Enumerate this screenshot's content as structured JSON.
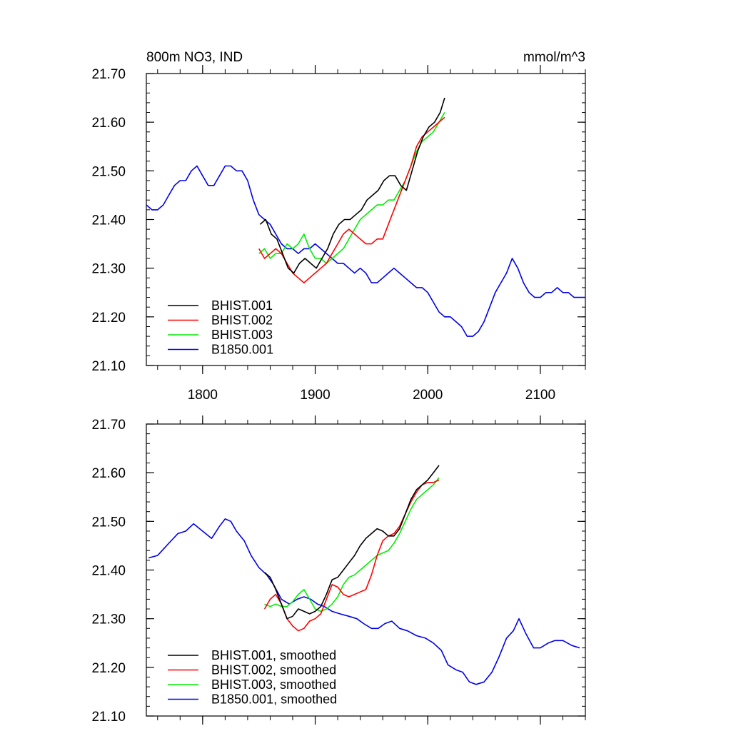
{
  "chart_data": [
    {
      "type": "line",
      "title": "800m NO3, IND",
      "units": "mmol/m^3",
      "xlim": [
        1750,
        2140
      ],
      "ylim": [
        21.1,
        21.7
      ],
      "xticks": [
        1800,
        1900,
        2000,
        2100
      ],
      "xtick_labels": [
        "1800",
        "1900",
        "2000",
        "2100"
      ],
      "yticks": [
        21.1,
        21.2,
        21.3,
        21.4,
        21.5,
        21.6,
        21.7
      ],
      "ytick_labels": [
        "21.10",
        "21.20",
        "21.30",
        "21.40",
        "21.50",
        "21.60",
        "21.70"
      ],
      "grid": false,
      "legend_position": "bottom-left",
      "series": [
        {
          "name": "BHIST.001",
          "color": "#000000",
          "x": [
            1851,
            1856,
            1861,
            1866,
            1871,
            1876,
            1881,
            1886,
            1891,
            1896,
            1901,
            1906,
            1911,
            1916,
            1921,
            1926,
            1931,
            1936,
            1941,
            1946,
            1951,
            1956,
            1961,
            1966,
            1971,
            1976,
            1981,
            1986,
            1991,
            1996,
            2001,
            2006,
            2011,
            2015
          ],
          "y": [
            21.39,
            21.4,
            21.37,
            21.36,
            21.33,
            21.3,
            21.29,
            21.31,
            21.32,
            21.31,
            21.3,
            21.32,
            21.34,
            21.37,
            21.39,
            21.4,
            21.4,
            21.41,
            21.42,
            21.44,
            21.45,
            21.46,
            21.48,
            21.49,
            21.49,
            21.47,
            21.46,
            21.5,
            21.54,
            21.57,
            21.59,
            21.6,
            21.62,
            21.65
          ]
        },
        {
          "name": "BHIST.002",
          "color": "#ff0000",
          "x": [
            1850,
            1855,
            1860,
            1865,
            1870,
            1875,
            1880,
            1885,
            1890,
            1895,
            1900,
            1905,
            1910,
            1915,
            1920,
            1925,
            1930,
            1935,
            1940,
            1945,
            1950,
            1955,
            1960,
            1965,
            1970,
            1975,
            1980,
            1985,
            1990,
            1995,
            2000,
            2005,
            2010,
            2015
          ],
          "y": [
            21.34,
            21.32,
            21.33,
            21.34,
            21.33,
            21.31,
            21.29,
            21.28,
            21.27,
            21.28,
            21.29,
            21.3,
            21.31,
            21.33,
            21.35,
            21.37,
            21.38,
            21.37,
            21.36,
            21.35,
            21.35,
            21.36,
            21.36,
            21.39,
            21.42,
            21.45,
            21.48,
            21.51,
            21.55,
            21.57,
            21.58,
            21.59,
            21.6,
            21.61
          ]
        },
        {
          "name": "BHIST.003",
          "color": "#00ee00",
          "x": [
            1850,
            1855,
            1860,
            1865,
            1870,
            1875,
            1880,
            1885,
            1890,
            1895,
            1900,
            1905,
            1910,
            1915,
            1920,
            1925,
            1930,
            1935,
            1940,
            1945,
            1950,
            1955,
            1960,
            1965,
            1970,
            1975,
            1980,
            1985,
            1990,
            1995,
            2000,
            2005,
            2010,
            2015
          ],
          "y": [
            21.33,
            21.34,
            21.32,
            21.33,
            21.33,
            21.35,
            21.34,
            21.35,
            21.37,
            21.34,
            21.32,
            21.32,
            21.31,
            21.32,
            21.33,
            21.34,
            21.36,
            21.38,
            21.4,
            21.41,
            21.42,
            21.43,
            21.43,
            21.44,
            21.44,
            21.46,
            21.48,
            21.51,
            21.54,
            21.56,
            21.57,
            21.58,
            21.6,
            21.62
          ]
        },
        {
          "name": "B1850.001",
          "color": "#0000ee",
          "x": [
            1750,
            1755,
            1760,
            1765,
            1770,
            1775,
            1780,
            1785,
            1790,
            1795,
            1800,
            1805,
            1810,
            1815,
            1820,
            1825,
            1830,
            1835,
            1840,
            1845,
            1850,
            1855,
            1860,
            1865,
            1870,
            1875,
            1880,
            1885,
            1890,
            1895,
            1900,
            1905,
            1910,
            1915,
            1920,
            1925,
            1930,
            1935,
            1940,
            1945,
            1950,
            1955,
            1960,
            1965,
            1970,
            1975,
            1980,
            1985,
            1990,
            1995,
            2000,
            2005,
            2010,
            2015,
            2020,
            2025,
            2030,
            2035,
            2040,
            2045,
            2050,
            2055,
            2060,
            2065,
            2070,
            2075,
            2080,
            2085,
            2090,
            2095,
            2100,
            2105,
            2110,
            2115,
            2120,
            2125,
            2130,
            2135,
            2140
          ],
          "y": [
            21.43,
            21.42,
            21.42,
            21.43,
            21.45,
            21.47,
            21.48,
            21.48,
            21.5,
            21.51,
            21.49,
            21.47,
            21.47,
            21.49,
            21.51,
            21.51,
            21.5,
            21.5,
            21.48,
            21.44,
            21.41,
            21.4,
            21.39,
            21.37,
            21.35,
            21.34,
            21.34,
            21.33,
            21.34,
            21.34,
            21.35,
            21.34,
            21.33,
            21.32,
            21.31,
            21.31,
            21.3,
            21.29,
            21.3,
            21.29,
            21.27,
            21.27,
            21.28,
            21.29,
            21.3,
            21.29,
            21.28,
            21.27,
            21.26,
            21.26,
            21.25,
            21.23,
            21.21,
            21.2,
            21.2,
            21.19,
            21.18,
            21.16,
            21.16,
            21.17,
            21.19,
            21.22,
            21.25,
            21.27,
            21.29,
            21.32,
            21.3,
            21.27,
            21.25,
            21.24,
            21.24,
            21.25,
            21.25,
            21.26,
            21.25,
            21.25,
            21.24,
            21.24,
            21.24
          ]
        }
      ]
    },
    {
      "type": "line",
      "xlim": [
        1750,
        2140
      ],
      "ylim": [
        21.1,
        21.7
      ],
      "xticks": [
        1800,
        1900,
        2000,
        2100
      ],
      "yticks": [
        21.1,
        21.2,
        21.3,
        21.4,
        21.5,
        21.6,
        21.7
      ],
      "ytick_labels": [
        "21.10",
        "21.20",
        "21.30",
        "21.40",
        "21.50",
        "21.60",
        "21.70"
      ],
      "grid": false,
      "legend_position": "bottom-left",
      "series": [
        {
          "name": "BHIST.001, smoothed",
          "color": "#000000",
          "x": [
            1855,
            1860,
            1865,
            1870,
            1875,
            1880,
            1885,
            1890,
            1895,
            1900,
            1905,
            1910,
            1915,
            1920,
            1925,
            1930,
            1935,
            1940,
            1945,
            1950,
            1955,
            1960,
            1965,
            1970,
            1975,
            1980,
            1985,
            1990,
            1995,
            2000,
            2005,
            2010
          ],
          "y": [
            21.395,
            21.385,
            21.36,
            21.33,
            21.3,
            21.305,
            21.32,
            21.315,
            21.31,
            21.315,
            21.325,
            21.35,
            21.38,
            21.385,
            21.4,
            21.415,
            21.43,
            21.45,
            21.465,
            21.475,
            21.485,
            21.48,
            21.47,
            21.47,
            21.485,
            21.515,
            21.545,
            21.565,
            21.575,
            21.585,
            21.6,
            21.615
          ]
        },
        {
          "name": "BHIST.002, smoothed",
          "color": "#ff0000",
          "x": [
            1855,
            1860,
            1865,
            1870,
            1875,
            1880,
            1885,
            1890,
            1895,
            1900,
            1905,
            1910,
            1915,
            1920,
            1925,
            1930,
            1935,
            1940,
            1945,
            1950,
            1955,
            1960,
            1965,
            1970,
            1975,
            1980,
            1985,
            1990,
            1995,
            2000,
            2005,
            2010
          ],
          "y": [
            21.32,
            21.34,
            21.35,
            21.33,
            21.3,
            21.285,
            21.275,
            21.28,
            21.295,
            21.3,
            21.31,
            21.34,
            21.37,
            21.365,
            21.35,
            21.345,
            21.35,
            21.355,
            21.36,
            21.39,
            21.43,
            21.46,
            21.47,
            21.475,
            21.49,
            21.515,
            21.54,
            21.56,
            21.575,
            21.58,
            21.58,
            21.585
          ]
        },
        {
          "name": "BHIST.003, smoothed",
          "color": "#00ee00",
          "x": [
            1855,
            1860,
            1865,
            1870,
            1875,
            1880,
            1885,
            1890,
            1895,
            1900,
            1905,
            1910,
            1915,
            1920,
            1925,
            1930,
            1935,
            1940,
            1945,
            1950,
            1955,
            1960,
            1965,
            1970,
            1975,
            1980,
            1985,
            1990,
            1995,
            2000,
            2005,
            2010
          ],
          "y": [
            21.33,
            21.325,
            21.33,
            21.325,
            21.325,
            21.335,
            21.35,
            21.36,
            21.34,
            21.32,
            21.315,
            21.32,
            21.33,
            21.345,
            21.37,
            21.385,
            21.39,
            21.4,
            21.41,
            21.42,
            21.43,
            21.435,
            21.44,
            21.455,
            21.475,
            21.5,
            21.525,
            21.545,
            21.555,
            21.565,
            21.575,
            21.59
          ]
        },
        {
          "name": "B1850.001, smoothed",
          "color": "#0000ee",
          "x": [
            1752,
            1760,
            1770,
            1778,
            1785,
            1792,
            1800,
            1808,
            1815,
            1820,
            1825,
            1830,
            1837,
            1843,
            1850,
            1857,
            1863,
            1870,
            1877,
            1884,
            1890,
            1896,
            1902,
            1908,
            1915,
            1922,
            1930,
            1937,
            1943,
            1950,
            1956,
            1962,
            1968,
            1975,
            1982,
            1990,
            1998,
            2005,
            2012,
            2018,
            2025,
            2031,
            2037,
            2043,
            2050,
            2057,
            2063,
            2070,
            2076,
            2081,
            2087,
            2094,
            2100,
            2107,
            2113,
            2120,
            2128,
            2135
          ],
          "y": [
            21.425,
            21.43,
            21.455,
            21.475,
            21.48,
            21.495,
            21.48,
            21.465,
            21.49,
            21.505,
            21.5,
            21.48,
            21.46,
            21.43,
            21.405,
            21.39,
            21.37,
            21.34,
            21.33,
            21.34,
            21.345,
            21.34,
            21.33,
            21.325,
            21.315,
            21.31,
            21.305,
            21.3,
            21.29,
            21.28,
            21.28,
            21.29,
            21.295,
            21.28,
            21.275,
            21.265,
            21.26,
            21.25,
            21.235,
            21.205,
            21.195,
            21.19,
            21.17,
            21.165,
            21.17,
            21.19,
            21.22,
            21.26,
            21.275,
            21.3,
            21.27,
            21.24,
            21.24,
            21.25,
            21.255,
            21.255,
            21.245,
            21.24
          ]
        }
      ],
      "legend_labels": [
        "BHIST.001, smoothed",
        "BHIST.002, smoothed",
        "BHIST.003, smoothed",
        "B1850.001, smoothed"
      ]
    }
  ]
}
